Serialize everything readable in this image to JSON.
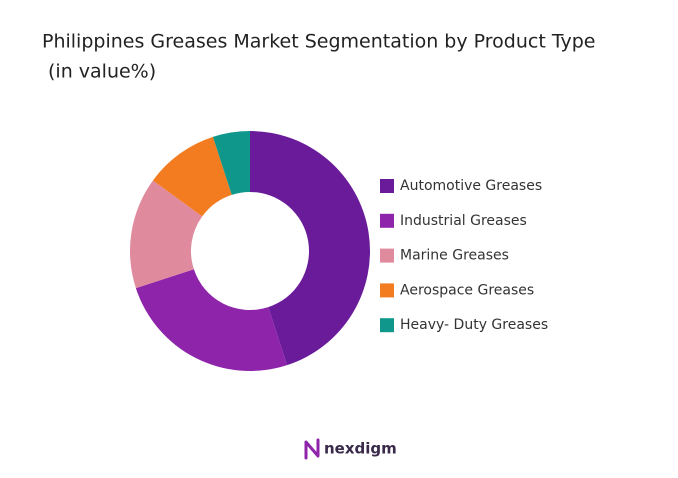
{
  "chart_data": {
    "type": "donut",
    "title": "Philippines Greases Market Segmentation by Product Type",
    "subtitle": "(in value%)",
    "categories": [
      "Automotive Greases",
      "Industrial Greases",
      "Marine Greases",
      "Aerospace Greases",
      "Heavy- Duty Greases"
    ],
    "values": [
      45,
      25,
      15,
      10,
      5
    ],
    "colors": [
      "#6a1b9a",
      "#8e24aa",
      "#e08a9e",
      "#f47c20",
      "#10978b"
    ],
    "legend": "right"
  },
  "footer": {
    "logo": "nexdigm"
  }
}
